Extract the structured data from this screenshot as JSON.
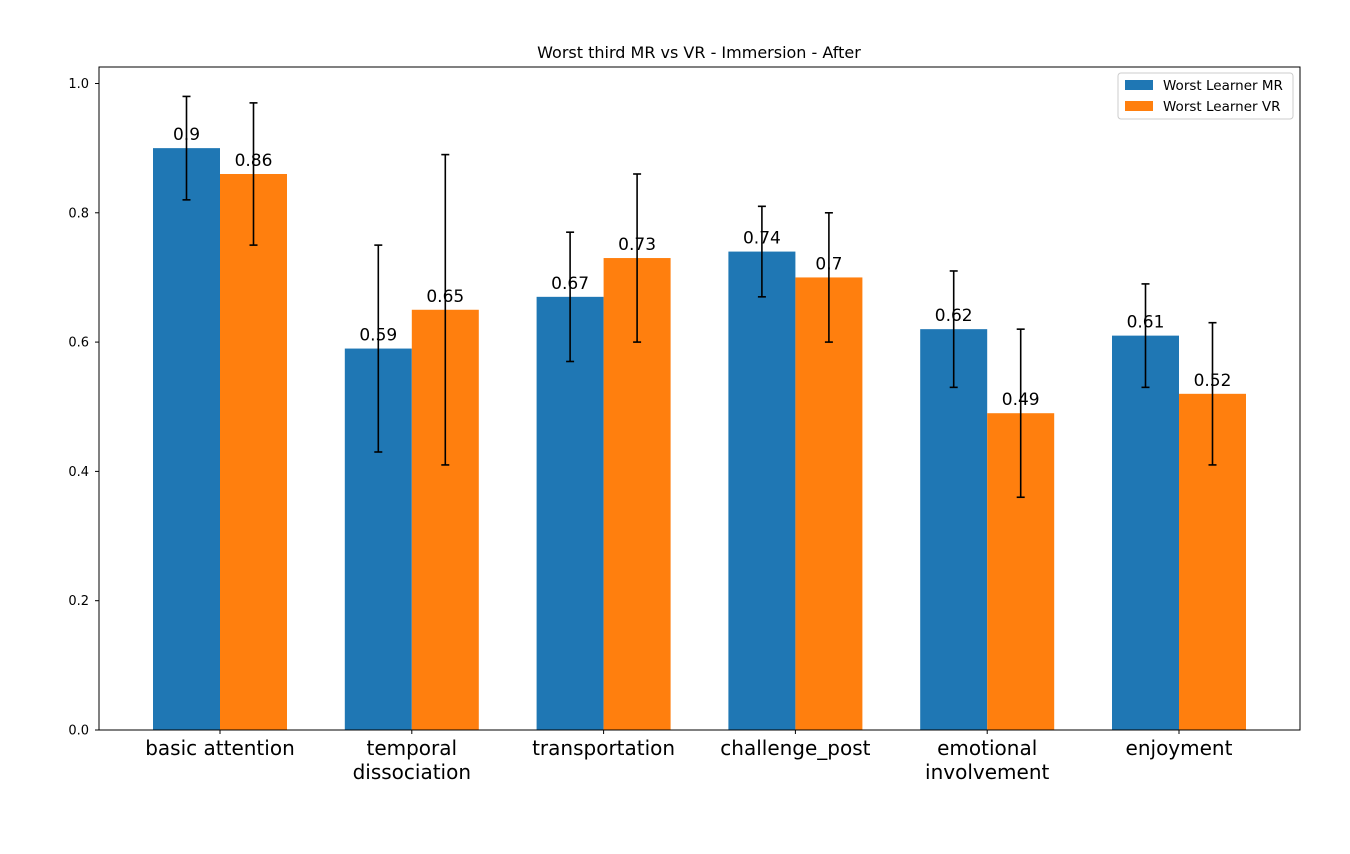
{
  "chart_data": {
    "type": "bar",
    "title": "Worst third MR vs VR - Immersion - After",
    "xlabel": "",
    "ylabel": "",
    "categories": [
      [
        "basic attention"
      ],
      [
        "temporal",
        "dissociation"
      ],
      [
        "transportation"
      ],
      [
        "challenge_post"
      ],
      [
        "emotional",
        "involvement"
      ],
      [
        "enjoyment"
      ]
    ],
    "series": [
      {
        "name": "Worst Learner MR",
        "color": "#1f77b4",
        "values": [
          0.9,
          0.59,
          0.67,
          0.74,
          0.62,
          0.61
        ],
        "labels": [
          "0.9",
          "0.59",
          "0.67",
          "0.74",
          "0.62",
          "0.61"
        ],
        "errors": [
          0.08,
          0.16,
          0.1,
          0.07,
          0.09,
          0.08
        ]
      },
      {
        "name": "Worst Learner VR",
        "color": "#ff7f0e",
        "values": [
          0.86,
          0.65,
          0.73,
          0.7,
          0.49,
          0.52
        ],
        "labels": [
          "0.86",
          "0.65",
          "0.73",
          "0.7",
          "0.49",
          "0.52"
        ],
        "errors": [
          0.11,
          0.24,
          0.13,
          0.1,
          0.13,
          0.11
        ]
      }
    ],
    "yticks": [
      "0.0",
      "0.2",
      "0.4",
      "0.6",
      "0.8",
      "1.0"
    ],
    "ylim": [
      0,
      1.0255
    ],
    "grid": false,
    "legend_position": "top-right"
  }
}
